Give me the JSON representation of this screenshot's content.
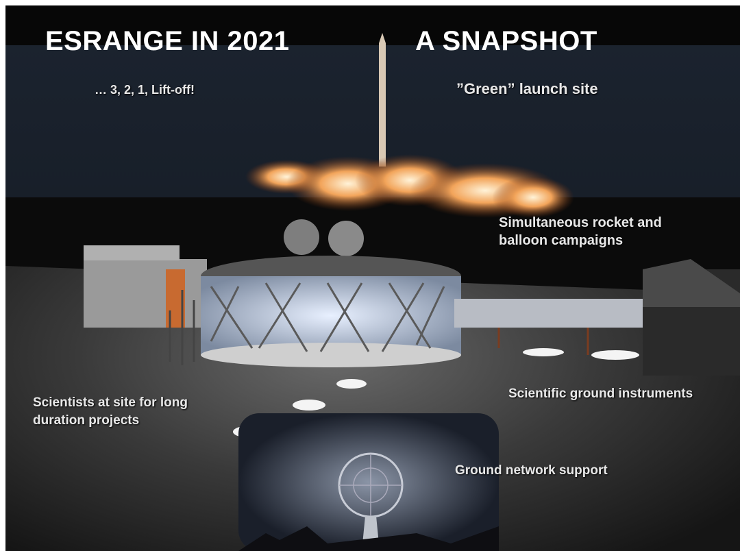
{
  "slide": {
    "title_left": "ESRANGE IN 2021",
    "title_right": "A SNAPSHOT",
    "labels": [
      {
        "lines": [
          "… 3, 2, 1,  Lift-off!"
        ]
      },
      {
        "lines": [
          "”Green” launch site"
        ]
      },
      {
        "lines": [
          "Simultaneous rocket and",
          "balloon campaigns"
        ]
      },
      {
        "lines": [
          "Scientists at site for long",
          "duration projects"
        ]
      },
      {
        "lines": [
          "Scientific ground instruments"
        ]
      },
      {
        "lines": [
          "Ground network support"
        ]
      }
    ]
  }
}
